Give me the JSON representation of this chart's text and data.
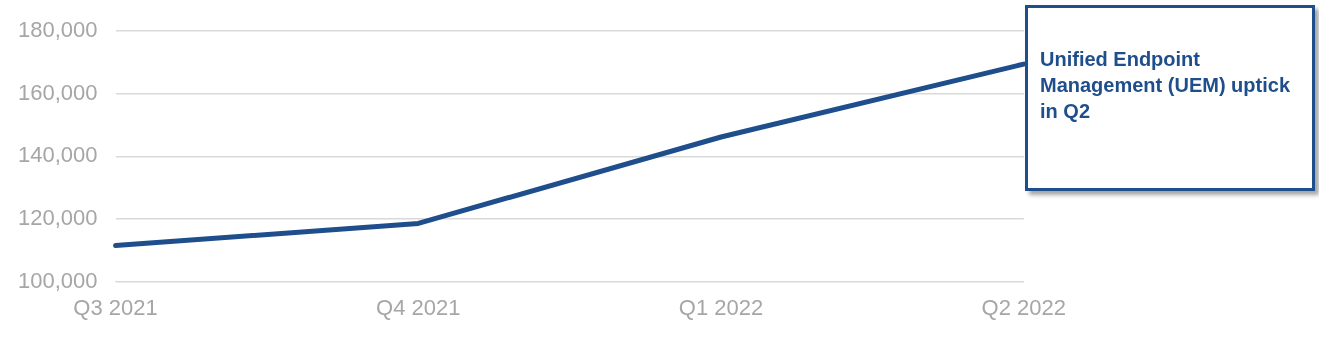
{
  "chart_data": {
    "type": "line",
    "categories": [
      "Q3 2021",
      "Q4 2021",
      "Q1 2022",
      "Q2 2022"
    ],
    "series": [
      {
        "color": "#1f4e8c",
        "values": [
          111500,
          118600,
          146200,
          169500
        ]
      }
    ],
    "ylim": [
      100000,
      180000
    ],
    "yticks": [
      {
        "value": 100000,
        "label": "100,000"
      },
      {
        "value": 120000,
        "label": "120,000"
      },
      {
        "value": 140000,
        "label": "140,000"
      },
      {
        "value": 160000,
        "label": "160,000"
      },
      {
        "value": 180000,
        "label": "180,000"
      }
    ],
    "grid": "y",
    "legend": false,
    "marker": "none",
    "line_style": "solid",
    "annotations": [
      "Unified Endpoint Management (UEM) uptick in Q2"
    ]
  }
}
